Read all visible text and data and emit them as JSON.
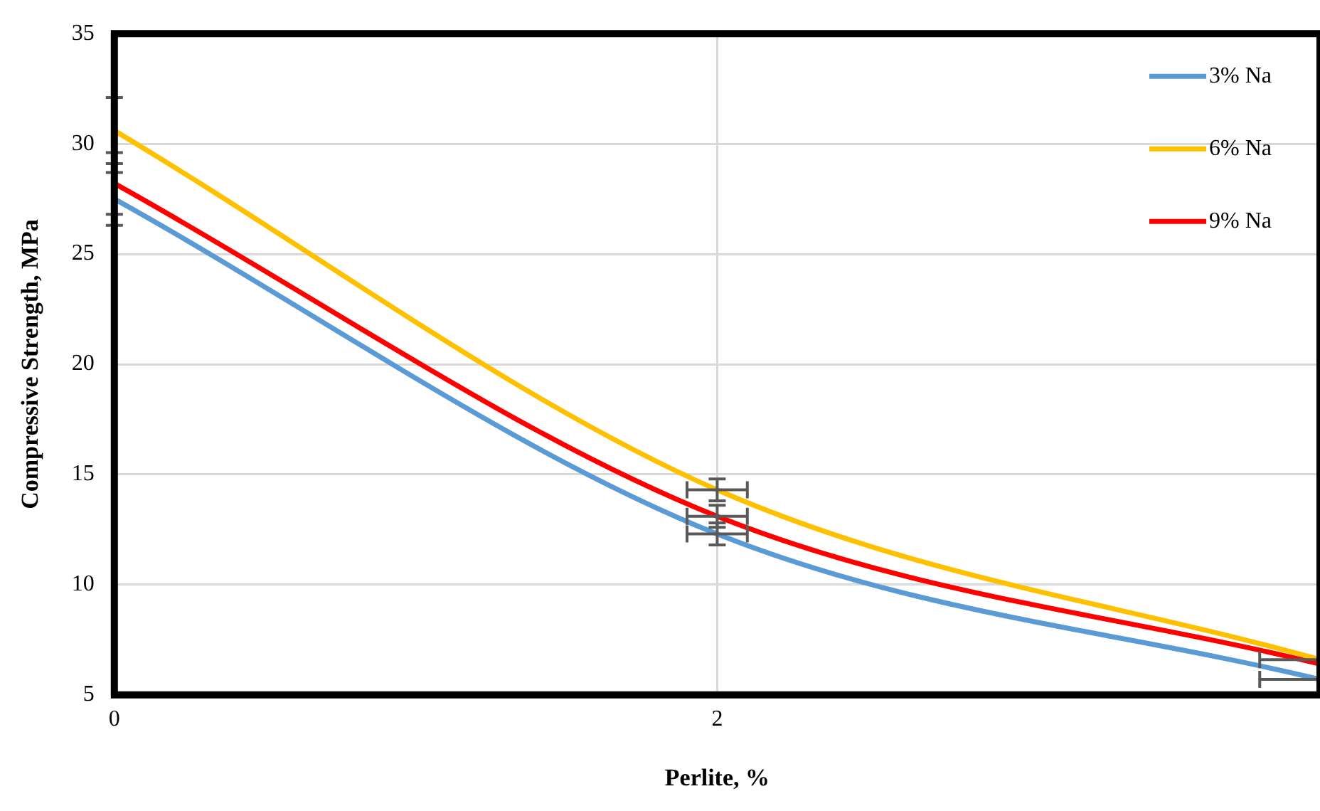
{
  "chart_data": {
    "type": "line",
    "xlabel": "Perlite, %",
    "ylabel": "Compressive Strength, MPa",
    "x": [
      0,
      2,
      4
    ],
    "xlim": [
      0,
      4
    ],
    "xticks": [
      0,
      2
    ],
    "ylim": [
      5,
      35
    ],
    "yticks": [
      5,
      10,
      15,
      20,
      25,
      30,
      35
    ],
    "grid": true,
    "legend": "top right",
    "marker": "none",
    "line_style": "solid",
    "series": [
      {
        "name": "3% Na",
        "color": "#5b9bd5",
        "values": [
          27.5,
          12.3,
          5.7
        ],
        "errors": [
          1.2,
          0.5,
          null
        ],
        "xerrors": [
          null,
          0.1,
          [
            3.8,
            4
          ]
        ]
      },
      {
        "name": "6% Na",
        "color": "#ffc000",
        "values": [
          30.6,
          14.3,
          6.6
        ],
        "errors": [
          1.5,
          0.5,
          null
        ],
        "xerrors": [
          null,
          0.1,
          [
            3.8,
            4
          ]
        ]
      },
      {
        "name": "9% Na",
        "color": "#ff0000",
        "values": [
          28.2,
          13.1,
          6.4
        ],
        "errors": [
          1.4,
          0.5,
          null
        ],
        "xerrors": [
          null,
          0.1,
          null
        ]
      }
    ]
  }
}
